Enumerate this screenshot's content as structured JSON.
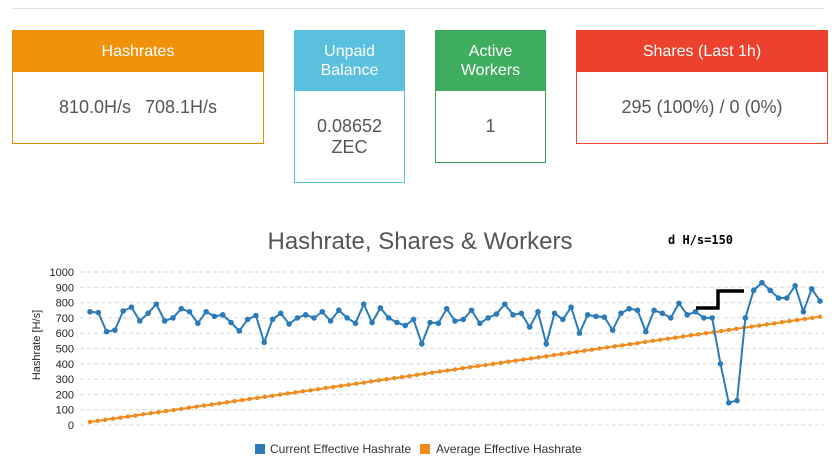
{
  "panels": {
    "hashrates": {
      "title": "Hashrates",
      "current": "810.0H/s",
      "average": "708.1H/s"
    },
    "unpaid": {
      "title_line1": "Unpaid",
      "title_line2": "Balance",
      "value_line1": "0.08652",
      "value_line2": "ZEC"
    },
    "workers": {
      "title_line1": "Active",
      "title_line2": "Workers",
      "value": "1"
    },
    "shares": {
      "title": "Shares (Last 1h)",
      "value": "295 (100%) / 0 (0%)"
    }
  },
  "colors": {
    "hashrates": "#f0920c",
    "unpaid": "#5bc0de",
    "workers": "#3fad5e",
    "shares": "#ec412d",
    "current": "#2b7bb9",
    "average": "#f08b1d"
  },
  "annotation": {
    "text": "d H/s=150"
  },
  "chart_data": {
    "type": "line",
    "title": "Hashrate, Shares & Workers",
    "ylabel": "Hashrate [H/s]",
    "xlabel": "",
    "ylim": [
      0,
      1000
    ],
    "yticks": [
      0,
      100,
      200,
      300,
      400,
      500,
      600,
      700,
      800,
      900,
      1000
    ],
    "grid": true,
    "legend_position": "bottom",
    "series": [
      {
        "name": "Current Effective Hashrate",
        "values": [
          740,
          735,
          610,
          620,
          745,
          770,
          680,
          730,
          790,
          680,
          700,
          760,
          740,
          665,
          740,
          710,
          720,
          670,
          615,
          690,
          715,
          540,
          690,
          730,
          660,
          700,
          720,
          700,
          740,
          680,
          750,
          700,
          665,
          790,
          670,
          765,
          700,
          670,
          650,
          690,
          530,
          670,
          665,
          760,
          680,
          690,
          750,
          665,
          700,
          725,
          790,
          720,
          730,
          640,
          740,
          530,
          730,
          690,
          770,
          600,
          720,
          710,
          705,
          620,
          730,
          760,
          750,
          610,
          750,
          730,
          700,
          795,
          720,
          740,
          700,
          700,
          400,
          145,
          160,
          700,
          880,
          930,
          880,
          830,
          830,
          910,
          740,
          890,
          810
        ]
      },
      {
        "name": "Average Effective Hashrate",
        "values": [
          20,
          27,
          34,
          41,
          48,
          55,
          62,
          70,
          77,
          84,
          91,
          98,
          105,
          113,
          120,
          127,
          134,
          141,
          148,
          156,
          163,
          170,
          177,
          184,
          191,
          199,
          206,
          213,
          220,
          227,
          234,
          242,
          249,
          256,
          263,
          270,
          277,
          285,
          292,
          299,
          306,
          313,
          320,
          328,
          335,
          342,
          349,
          356,
          363,
          371,
          378,
          385,
          392,
          399,
          406,
          414,
          421,
          428,
          435,
          442,
          449,
          457,
          464,
          471,
          478,
          485,
          492,
          500,
          507,
          514,
          521,
          528,
          535,
          543,
          550,
          557,
          564,
          571,
          578,
          586,
          593,
          600,
          607,
          614,
          621,
          629,
          636,
          643,
          650,
          657,
          664,
          672,
          679,
          686,
          693,
          700,
          708
        ]
      }
    ]
  }
}
